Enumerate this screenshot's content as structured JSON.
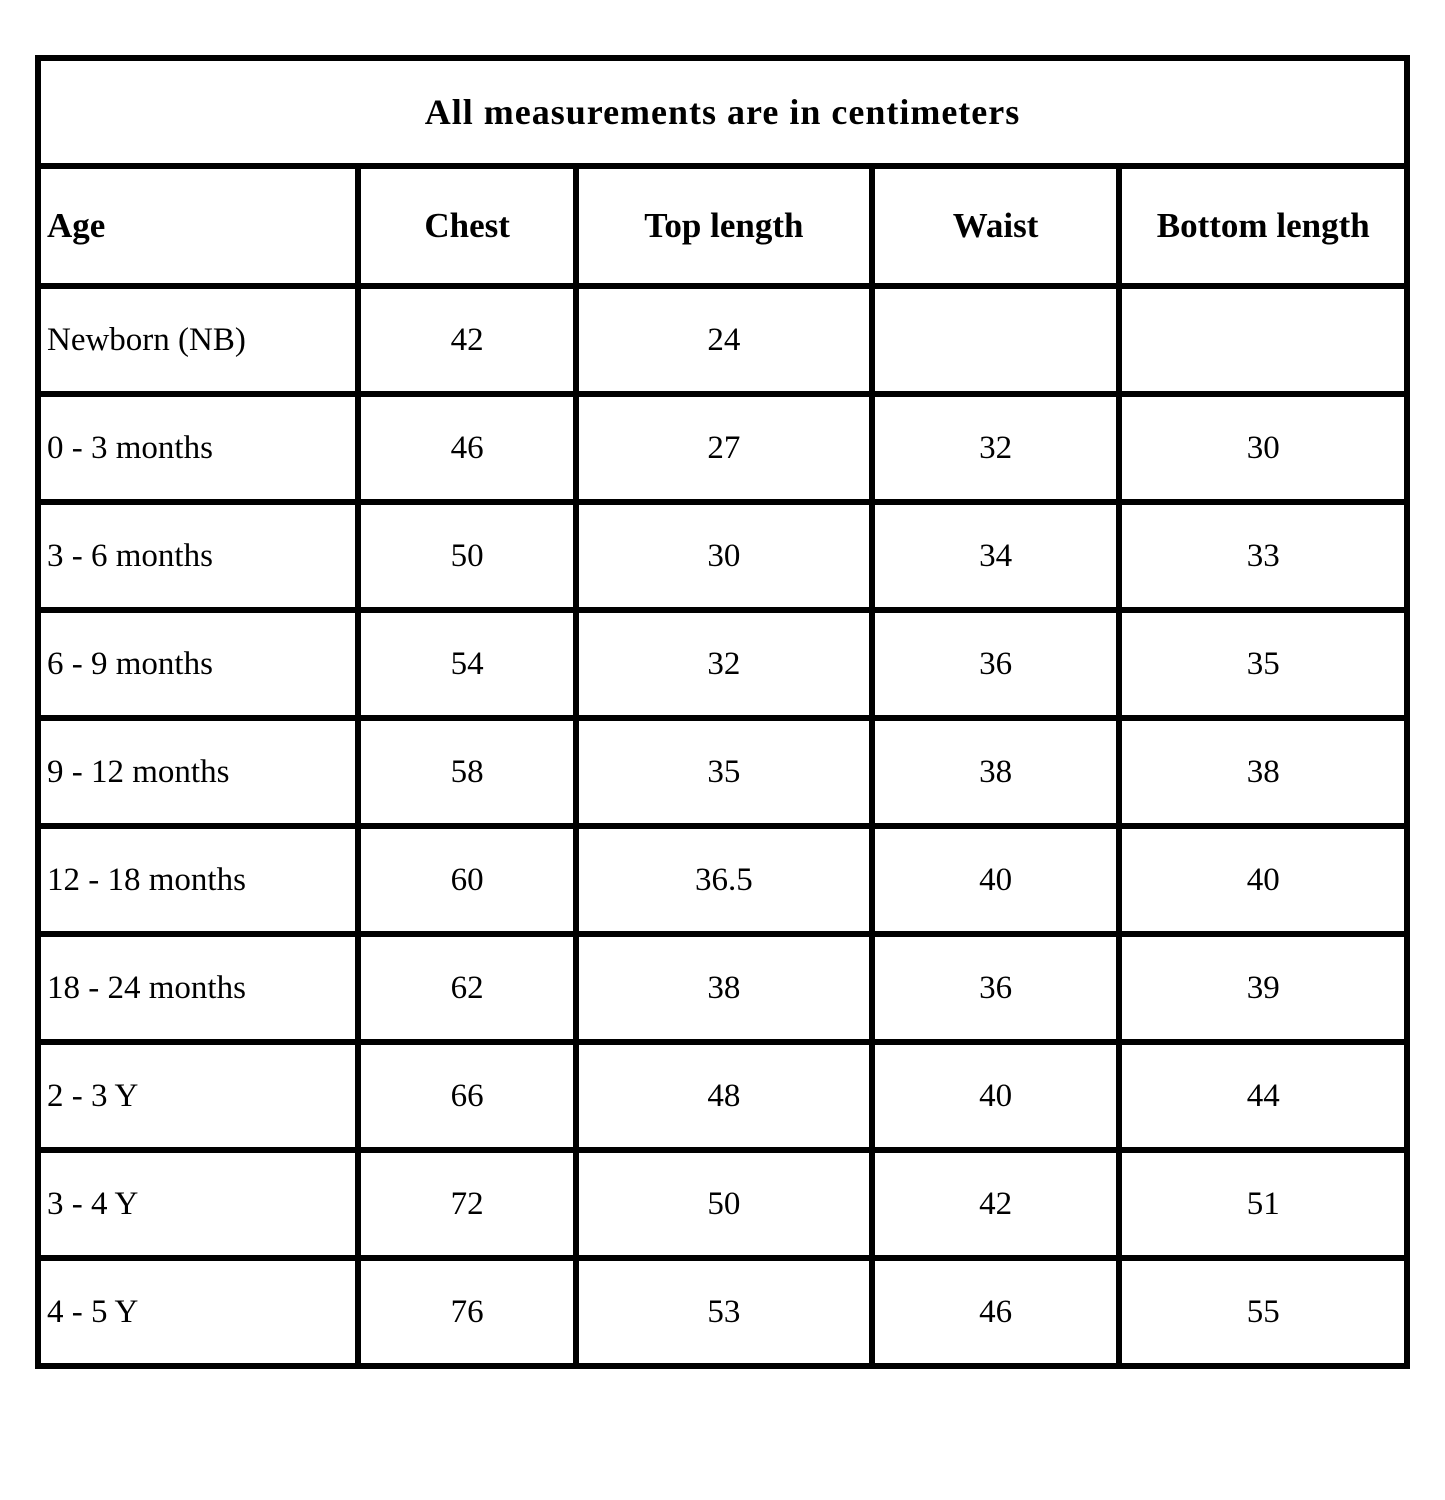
{
  "colors": {
    "border": "#000000",
    "text": "#000000",
    "background": "#ffffff"
  },
  "chart_data": {
    "type": "table",
    "title": "All measurements are in centimeters",
    "units": "centimeters",
    "columns": [
      "Age",
      "Chest",
      "Top length",
      "Waist",
      "Bottom length"
    ],
    "rows": [
      [
        "Newborn (NB)",
        "42",
        "24",
        "",
        ""
      ],
      [
        "0 - 3 months",
        "46",
        "27",
        "32",
        "30"
      ],
      [
        "3 - 6 months",
        "50",
        "30",
        "34",
        "33"
      ],
      [
        "6 - 9 months",
        "54",
        "32",
        "36",
        "35"
      ],
      [
        "9 - 12 months",
        "58",
        "35",
        "38",
        "38"
      ],
      [
        "12 - 18 months",
        "60",
        "36.5",
        "40",
        "40"
      ],
      [
        "18 - 24 months",
        "62",
        "38",
        "36",
        "39"
      ],
      [
        "2 - 3 Y",
        "66",
        "48",
        "40",
        "44"
      ],
      [
        "3 - 4 Y",
        "72",
        "50",
        "42",
        "51"
      ],
      [
        "4 - 5 Y",
        "76",
        "53",
        "46",
        "55"
      ]
    ]
  }
}
